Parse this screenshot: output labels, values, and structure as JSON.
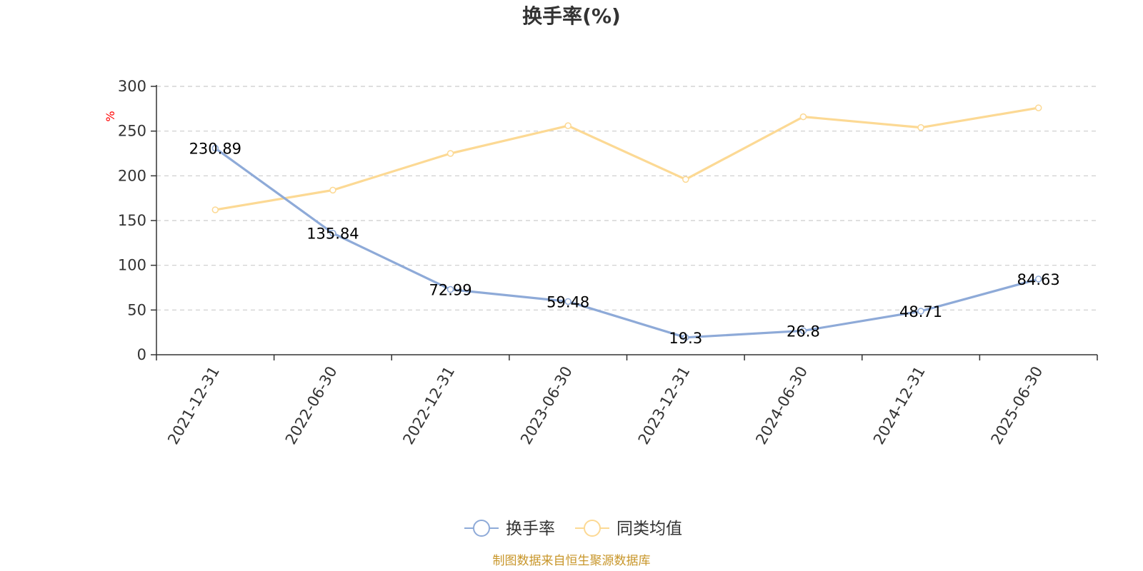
{
  "chart_data": {
    "type": "line",
    "title": "换手率(%)",
    "ylabel": "%",
    "ylim": [
      0,
      300
    ],
    "yticks": [
      0,
      50,
      100,
      150,
      200,
      250,
      300
    ],
    "grid": true,
    "legend_position": "bottom",
    "categories": [
      "2021-12-31",
      "2022-06-30",
      "2022-12-31",
      "2023-06-30",
      "2023-12-31",
      "2024-06-30",
      "2024-12-31",
      "2025-06-30"
    ],
    "series": [
      {
        "name": "换手率",
        "color": "#8eaad8",
        "values": [
          230.89,
          135.84,
          72.99,
          59.48,
          19.3,
          26.8,
          48.71,
          84.63
        ],
        "labels": [
          "230.89",
          "135.84",
          "72.99",
          "59.48",
          "19.3",
          "26.8",
          "48.71",
          "84.63"
        ]
      },
      {
        "name": "同类均值",
        "color": "#fcd994",
        "values": [
          162,
          184,
          225,
          256,
          196,
          266,
          254,
          276
        ]
      }
    ]
  },
  "source_text": "制图数据来自恒生聚源数据库",
  "source_color": "#c8962a"
}
